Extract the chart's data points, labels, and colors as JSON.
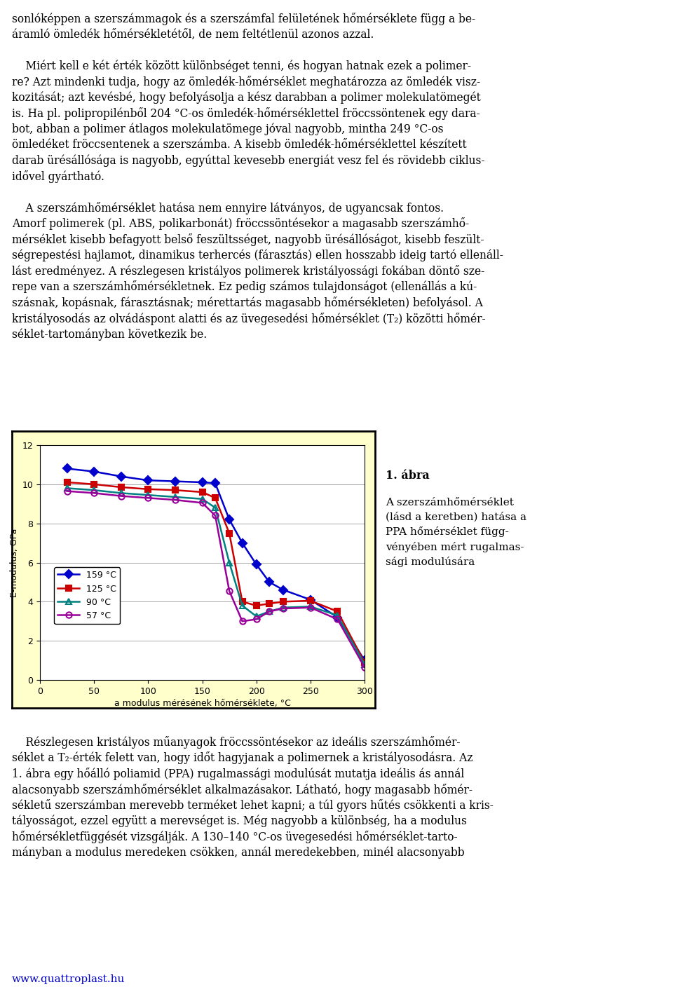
{
  "series": {
    "159C": {
      "label": "159 °C",
      "color": "#0000CC",
      "marker": "D",
      "marker_face": "#0000CC",
      "x": [
        25,
        50,
        75,
        100,
        125,
        150,
        162,
        175,
        187,
        200,
        212,
        225,
        250,
        275,
        300
      ],
      "y": [
        10.8,
        10.65,
        10.4,
        10.2,
        10.15,
        10.1,
        10.05,
        8.2,
        7.0,
        5.9,
        5.0,
        4.6,
        4.1,
        3.2,
        1.0
      ]
    },
    "125C": {
      "label": "125 °C",
      "color": "#CC0000",
      "marker": "s",
      "marker_face": "#CC0000",
      "x": [
        25,
        50,
        75,
        100,
        125,
        150,
        162,
        175,
        187,
        200,
        212,
        225,
        250,
        275,
        300
      ],
      "y": [
        10.1,
        10.0,
        9.85,
        9.75,
        9.7,
        9.6,
        9.3,
        7.5,
        4.0,
        3.8,
        3.9,
        4.0,
        4.05,
        3.5,
        0.9
      ]
    },
    "90C": {
      "label": "90 °C",
      "color": "#008080",
      "marker": "^",
      "marker_face": "none",
      "marker_edge": "#008080",
      "x": [
        25,
        50,
        75,
        100,
        125,
        150,
        162,
        175,
        187,
        200,
        212,
        225,
        250,
        275,
        300
      ],
      "y": [
        9.8,
        9.7,
        9.55,
        9.45,
        9.35,
        9.25,
        8.8,
        6.0,
        3.8,
        3.25,
        3.5,
        3.7,
        3.75,
        3.3,
        0.8
      ]
    },
    "57C": {
      "label": "57 °C",
      "color": "#990099",
      "marker": "o",
      "marker_face": "none",
      "marker_edge": "#990099",
      "x": [
        25,
        50,
        75,
        100,
        125,
        150,
        162,
        175,
        187,
        200,
        212,
        225,
        250,
        275,
        300
      ],
      "y": [
        9.65,
        9.55,
        9.4,
        9.3,
        9.2,
        9.05,
        8.4,
        4.55,
        3.0,
        3.1,
        3.5,
        3.65,
        3.7,
        3.1,
        0.65
      ]
    }
  },
  "xlabel": "a modulus mérésének hőmérséklete, °C",
  "ylabel": "E-modulus, GPa",
  "xlim": [
    0,
    300
  ],
  "ylim": [
    0,
    12
  ],
  "xticks": [
    0,
    50,
    100,
    150,
    200,
    250,
    300
  ],
  "yticks": [
    0,
    2,
    4,
    6,
    8,
    10,
    12
  ],
  "chart_bg": "#FFFFCC",
  "plot_bg": "#FFFFFF",
  "grid_color": "#AAAAAA",
  "figure_bg": "#FFFFFF",
  "caption_title": "1. ábra",
  "caption_body": "A szerszámhőmérséklet\n(lásd a keretben) hatása a\nPPA hőmérséklet függ-\nvényében mért rugalmas-\nsági modulúsára",
  "text_above": [
    "sonlóképpen a szerszámmagok és a szerszámfal felületének hőmérséklete függ a be-",
    "áramló ömledék hőmérsékletétől, de nem feltétlenül azonos azzal.",
    "",
    "    Miért kell e két érték között különbséget tenni, és hogyan hatnak ezek a polimer-",
    "re? Azt mindenki tudja, hogy az ömledék-hőmérséklet meghatározza az ömledék visz-",
    "kozitását; azt kevésbé, hogy befolyásolja a kész darabban a polimer molekulatömegét",
    "is. Ha pl. polipropilénből 204 °C-os ömledék-hőmérséklettel fröccssöntenek egy dara-",
    "bot, abban a polimer átlagos molekulatömege jóval nagyobb, mintha 249 °C-os",
    "ömledéket fröccsentenek a szerszámba. A kisebb ömledék-hőmérséklettel készített",
    "darab ürésállósága is nagyobb, egyúttal kevesebb energiát vesz fel és rövidebb ciklus-",
    "idővel gyártható.",
    "",
    "    A szerszámhőmérséklet hatása nem ennyire látványos, de ugyancsak fontos.",
    "Amorf polimerek (pl. ABS, polikarbonát) fröccssöntésekor a magasabb szerszámhő-",
    "mérséklet kisebb befagyott belső feszültsséget, nagyobb ürésállóságot, kisebb feszült-",
    "ségrepestési hajlamot, dinamikus terhercés (fárasztás) ellen hosszabb ideig tartó ellenáll-",
    "lást eredményez. A részlegesen kristályos polimerek kristályossági fokában döntő sze-",
    "repe van a szerszámhőmérsékletnek. Ez pedig számos tulajdonságot (ellenállás a kú-",
    "szásnak, kopásnak, fárasztásnak; mérettartás magasabb hőmérsékleten) befolyásol. A",
    "kristályosodás az olvádáspont alatti és az üvegesedési hőmérséklet (T₂) közötti hőmér-",
    "séklet-tartományban következik be."
  ],
  "text_below": [
    "    Részlegesen kristályos műanyagok fröccssöntésekor az ideális szerszámhőmér-",
    "séklet a T₂-érték felett van, hogy időt hagyjanak a polimernek a kristályosodásra. Az",
    "1. ábra egy hőálló poliamid (PPA) rugalmassági modulúsát mutatja ideális ás annál",
    "alacsonyabb szerszámhőmérséklet alkalmazásakor. Látható, hogy magasabb hőmér-",
    "sékletű szerszámban merevebb terméket lehet kapni; a túl gyors hűtés csökkenti a kris-",
    "tályosságot, ezzel együtt a merevséget is. Még nagyobb a különbség, ha a modulus",
    "hőmérsékletfüggését vizsgálják. A 130–140 °C-os üvegesedési hőmérséklet-tarto-",
    "mányban a modulus meredeken csökken, annál meredekebben, minél alacsonyabb"
  ],
  "url_text": "www.quattroplast.hu",
  "url_color": "#0000CC"
}
